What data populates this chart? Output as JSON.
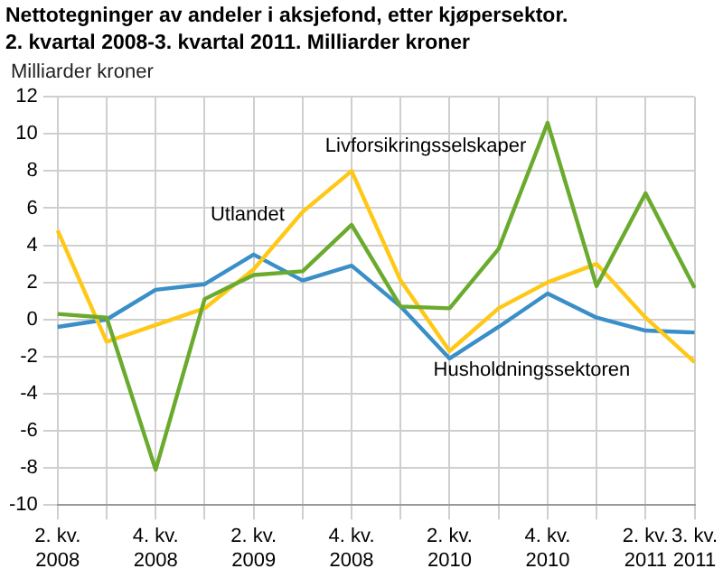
{
  "chart_data": {
    "type": "line",
    "title": "Nettotegninger av andeler i aksjefond, etter kjøpersektor. 2. kvartal 2008-3. kvartal 2011. Milliarder kroner",
    "ylabel": "Milliarder kroner",
    "categories": [
      "2. kv. 2008",
      null,
      "4. kv. 2008",
      null,
      "2. kv. 2009",
      null,
      "4. kv. 2008",
      null,
      "2. kv. 2010",
      null,
      "4. kv. 2010",
      null,
      "2. kv. 2011",
      "3. kv. 2011"
    ],
    "series": [
      {
        "name": "Livforsikringsselskaper",
        "color": "#6aab2e",
        "values": [
          0.3,
          0.1,
          -8.1,
          1.1,
          2.4,
          2.6,
          5.1,
          0.7,
          0.6,
          3.8,
          10.6,
          1.8,
          6.8,
          1.7
        ]
      },
      {
        "name": "Utlandet",
        "color": "#ffc817",
        "values": [
          4.8,
          -1.2,
          -0.3,
          0.6,
          2.7,
          5.8,
          8.0,
          2.1,
          -1.7,
          0.6,
          2.0,
          3.0,
          0.1,
          -2.3
        ]
      },
      {
        "name": "Husholdningssektoren",
        "color": "#3a8fc8",
        "values": [
          -0.4,
          0.0,
          1.6,
          1.9,
          3.5,
          2.1,
          2.9,
          0.7,
          -2.1,
          -0.4,
          1.4,
          0.1,
          -0.6,
          -0.7
        ]
      }
    ],
    "ylim": [
      -10,
      12
    ],
    "yticks": [
      -10,
      -8,
      -6,
      -4,
      -2,
      0,
      2,
      4,
      6,
      8,
      10,
      12
    ],
    "grid": true,
    "legend": false,
    "marker": "none",
    "line_style": "solid"
  }
}
